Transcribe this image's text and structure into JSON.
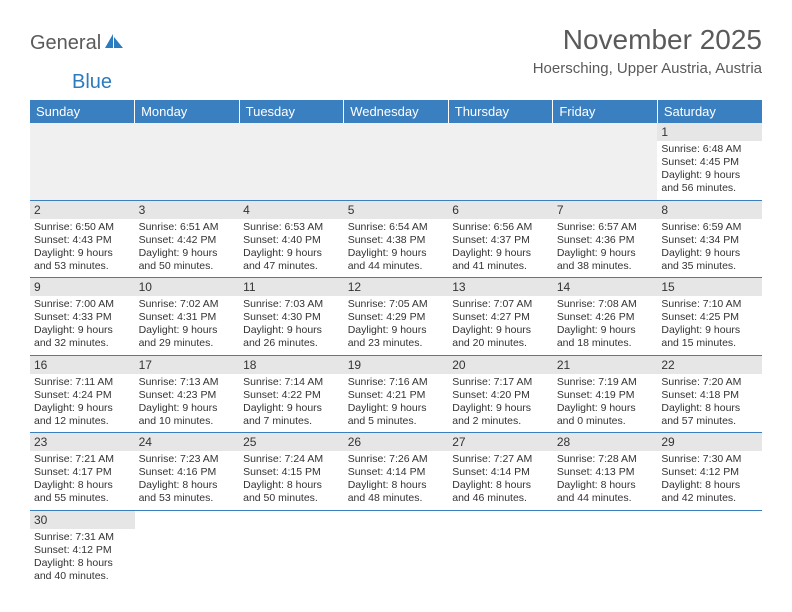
{
  "logo": {
    "text_dark": "General",
    "text_blue": "Blue",
    "icon_color": "#2b7bbf"
  },
  "title": {
    "month": "November 2025",
    "location": "Hoersching, Upper Austria, Austria"
  },
  "colors": {
    "header_bg": "#3a7fc0",
    "header_text": "#ffffff",
    "daynum_bg": "#e6e6e6",
    "text": "#333333",
    "border": "#3a7fc0"
  },
  "weekdays": [
    "Sunday",
    "Monday",
    "Tuesday",
    "Wednesday",
    "Thursday",
    "Friday",
    "Saturday"
  ],
  "weeks": [
    [
      null,
      null,
      null,
      null,
      null,
      null,
      {
        "n": "1",
        "sunrise": "Sunrise: 6:48 AM",
        "sunset": "Sunset: 4:45 PM",
        "daylight1": "Daylight: 9 hours",
        "daylight2": "and 56 minutes."
      }
    ],
    [
      {
        "n": "2",
        "sunrise": "Sunrise: 6:50 AM",
        "sunset": "Sunset: 4:43 PM",
        "daylight1": "Daylight: 9 hours",
        "daylight2": "and 53 minutes."
      },
      {
        "n": "3",
        "sunrise": "Sunrise: 6:51 AM",
        "sunset": "Sunset: 4:42 PM",
        "daylight1": "Daylight: 9 hours",
        "daylight2": "and 50 minutes."
      },
      {
        "n": "4",
        "sunrise": "Sunrise: 6:53 AM",
        "sunset": "Sunset: 4:40 PM",
        "daylight1": "Daylight: 9 hours",
        "daylight2": "and 47 minutes."
      },
      {
        "n": "5",
        "sunrise": "Sunrise: 6:54 AM",
        "sunset": "Sunset: 4:38 PM",
        "daylight1": "Daylight: 9 hours",
        "daylight2": "and 44 minutes."
      },
      {
        "n": "6",
        "sunrise": "Sunrise: 6:56 AM",
        "sunset": "Sunset: 4:37 PM",
        "daylight1": "Daylight: 9 hours",
        "daylight2": "and 41 minutes."
      },
      {
        "n": "7",
        "sunrise": "Sunrise: 6:57 AM",
        "sunset": "Sunset: 4:36 PM",
        "daylight1": "Daylight: 9 hours",
        "daylight2": "and 38 minutes."
      },
      {
        "n": "8",
        "sunrise": "Sunrise: 6:59 AM",
        "sunset": "Sunset: 4:34 PM",
        "daylight1": "Daylight: 9 hours",
        "daylight2": "and 35 minutes."
      }
    ],
    [
      {
        "n": "9",
        "sunrise": "Sunrise: 7:00 AM",
        "sunset": "Sunset: 4:33 PM",
        "daylight1": "Daylight: 9 hours",
        "daylight2": "and 32 minutes."
      },
      {
        "n": "10",
        "sunrise": "Sunrise: 7:02 AM",
        "sunset": "Sunset: 4:31 PM",
        "daylight1": "Daylight: 9 hours",
        "daylight2": "and 29 minutes."
      },
      {
        "n": "11",
        "sunrise": "Sunrise: 7:03 AM",
        "sunset": "Sunset: 4:30 PM",
        "daylight1": "Daylight: 9 hours",
        "daylight2": "and 26 minutes."
      },
      {
        "n": "12",
        "sunrise": "Sunrise: 7:05 AM",
        "sunset": "Sunset: 4:29 PM",
        "daylight1": "Daylight: 9 hours",
        "daylight2": "and 23 minutes."
      },
      {
        "n": "13",
        "sunrise": "Sunrise: 7:07 AM",
        "sunset": "Sunset: 4:27 PM",
        "daylight1": "Daylight: 9 hours",
        "daylight2": "and 20 minutes."
      },
      {
        "n": "14",
        "sunrise": "Sunrise: 7:08 AM",
        "sunset": "Sunset: 4:26 PM",
        "daylight1": "Daylight: 9 hours",
        "daylight2": "and 18 minutes."
      },
      {
        "n": "15",
        "sunrise": "Sunrise: 7:10 AM",
        "sunset": "Sunset: 4:25 PM",
        "daylight1": "Daylight: 9 hours",
        "daylight2": "and 15 minutes."
      }
    ],
    [
      {
        "n": "16",
        "sunrise": "Sunrise: 7:11 AM",
        "sunset": "Sunset: 4:24 PM",
        "daylight1": "Daylight: 9 hours",
        "daylight2": "and 12 minutes."
      },
      {
        "n": "17",
        "sunrise": "Sunrise: 7:13 AM",
        "sunset": "Sunset: 4:23 PM",
        "daylight1": "Daylight: 9 hours",
        "daylight2": "and 10 minutes."
      },
      {
        "n": "18",
        "sunrise": "Sunrise: 7:14 AM",
        "sunset": "Sunset: 4:22 PM",
        "daylight1": "Daylight: 9 hours",
        "daylight2": "and 7 minutes."
      },
      {
        "n": "19",
        "sunrise": "Sunrise: 7:16 AM",
        "sunset": "Sunset: 4:21 PM",
        "daylight1": "Daylight: 9 hours",
        "daylight2": "and 5 minutes."
      },
      {
        "n": "20",
        "sunrise": "Sunrise: 7:17 AM",
        "sunset": "Sunset: 4:20 PM",
        "daylight1": "Daylight: 9 hours",
        "daylight2": "and 2 minutes."
      },
      {
        "n": "21",
        "sunrise": "Sunrise: 7:19 AM",
        "sunset": "Sunset: 4:19 PM",
        "daylight1": "Daylight: 9 hours",
        "daylight2": "and 0 minutes."
      },
      {
        "n": "22",
        "sunrise": "Sunrise: 7:20 AM",
        "sunset": "Sunset: 4:18 PM",
        "daylight1": "Daylight: 8 hours",
        "daylight2": "and 57 minutes."
      }
    ],
    [
      {
        "n": "23",
        "sunrise": "Sunrise: 7:21 AM",
        "sunset": "Sunset: 4:17 PM",
        "daylight1": "Daylight: 8 hours",
        "daylight2": "and 55 minutes."
      },
      {
        "n": "24",
        "sunrise": "Sunrise: 7:23 AM",
        "sunset": "Sunset: 4:16 PM",
        "daylight1": "Daylight: 8 hours",
        "daylight2": "and 53 minutes."
      },
      {
        "n": "25",
        "sunrise": "Sunrise: 7:24 AM",
        "sunset": "Sunset: 4:15 PM",
        "daylight1": "Daylight: 8 hours",
        "daylight2": "and 50 minutes."
      },
      {
        "n": "26",
        "sunrise": "Sunrise: 7:26 AM",
        "sunset": "Sunset: 4:14 PM",
        "daylight1": "Daylight: 8 hours",
        "daylight2": "and 48 minutes."
      },
      {
        "n": "27",
        "sunrise": "Sunrise: 7:27 AM",
        "sunset": "Sunset: 4:14 PM",
        "daylight1": "Daylight: 8 hours",
        "daylight2": "and 46 minutes."
      },
      {
        "n": "28",
        "sunrise": "Sunrise: 7:28 AM",
        "sunset": "Sunset: 4:13 PM",
        "daylight1": "Daylight: 8 hours",
        "daylight2": "and 44 minutes."
      },
      {
        "n": "29",
        "sunrise": "Sunrise: 7:30 AM",
        "sunset": "Sunset: 4:12 PM",
        "daylight1": "Daylight: 8 hours",
        "daylight2": "and 42 minutes."
      }
    ],
    [
      {
        "n": "30",
        "sunrise": "Sunrise: 7:31 AM",
        "sunset": "Sunset: 4:12 PM",
        "daylight1": "Daylight: 8 hours",
        "daylight2": "and 40 minutes."
      },
      null,
      null,
      null,
      null,
      null,
      null
    ]
  ]
}
